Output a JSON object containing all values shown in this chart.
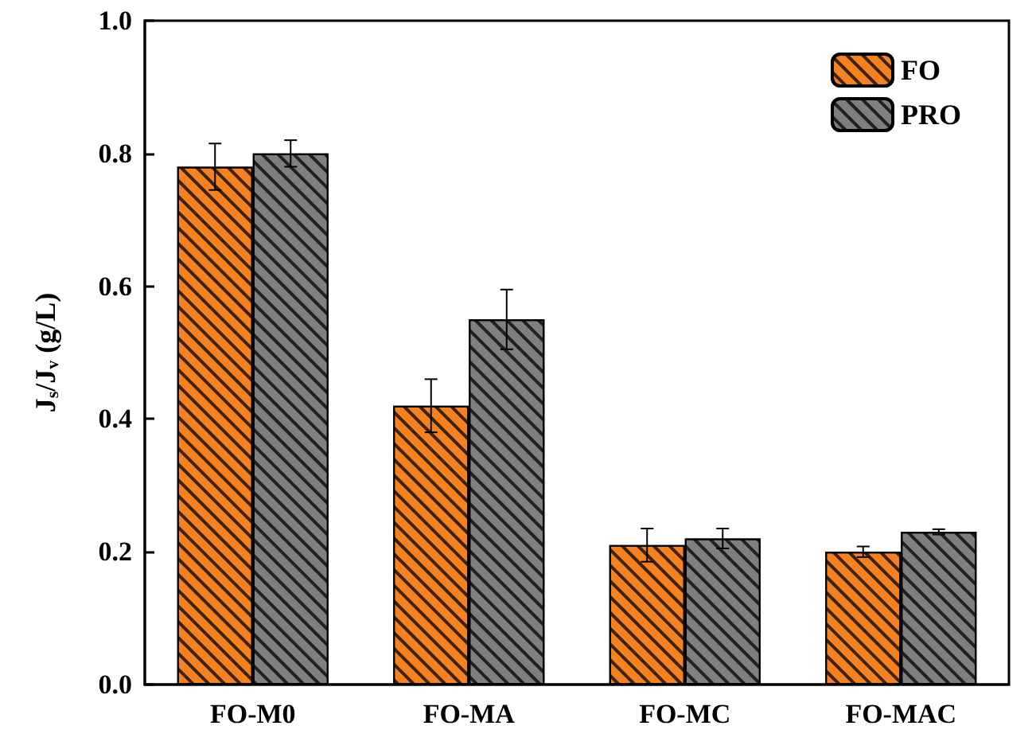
{
  "chart_data": {
    "type": "bar",
    "ylabel": "J$_{s}$/J$_{v}$ (g/L)",
    "categories": [
      "FO-M0",
      "FO-MA",
      "FO-MC",
      "FO-MAC"
    ],
    "series": [
      {
        "name": "FO",
        "color": "#f5821f",
        "values": [
          0.78,
          0.42,
          0.21,
          0.2
        ],
        "errors": [
          0.035,
          0.04,
          0.025,
          0.008
        ]
      },
      {
        "name": "PRO",
        "color": "#7f7f7f",
        "values": [
          0.8,
          0.55,
          0.22,
          0.23
        ],
        "errors": [
          0.02,
          0.045,
          0.015,
          0.004
        ]
      }
    ],
    "ylim": [
      0,
      1.0
    ],
    "yticks": [
      {
        "value": 0,
        "label": "0.0"
      },
      {
        "value": 0.2,
        "label": "0.2"
      },
      {
        "value": 0.4,
        "label": "0.4"
      },
      {
        "value": 0.6,
        "label": "0.6"
      },
      {
        "value": 0.8,
        "label": "0.8"
      },
      {
        "value": 1.0,
        "label": "1.0"
      }
    ],
    "grid": false,
    "legend": "top right"
  }
}
